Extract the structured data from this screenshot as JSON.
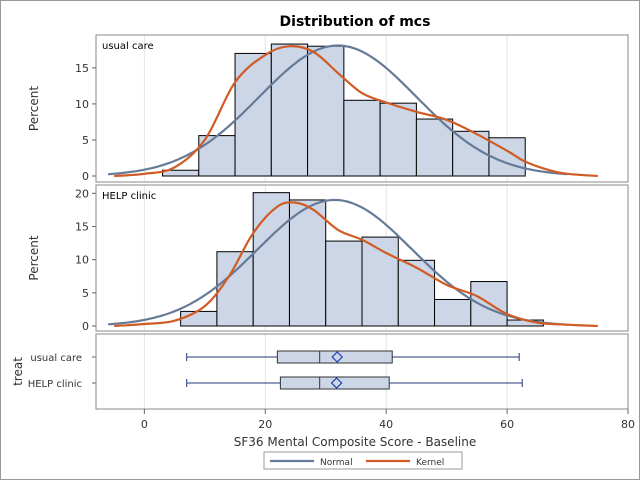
{
  "chart_data": {
    "type": "histogram",
    "title": "Distribution of mcs",
    "xlabel": "SF36 Mental Composite Score - Baseline",
    "xlim": [
      -8,
      80
    ],
    "xticks": [
      0,
      20,
      40,
      60,
      80
    ],
    "bins": [
      3,
      9,
      15,
      21,
      27,
      33,
      39,
      45,
      51,
      57,
      63
    ],
    "panels": [
      {
        "label": "usual care",
        "ylabel": "Percent",
        "ylim": [
          0,
          19
        ],
        "yticks": [
          0,
          5,
          10,
          15
        ],
        "percents": [
          0.8,
          5.6,
          17.0,
          18.3,
          18.0,
          10.5,
          10.1,
          7.9,
          6.2,
          5.3
        ],
        "normal_mean": 32,
        "normal_sd": 13.0,
        "normal_peak": 18.1,
        "kernel": [
          [
            -5,
            0
          ],
          [
            0,
            0.3
          ],
          [
            5,
            1.2
          ],
          [
            10,
            5
          ],
          [
            15,
            13
          ],
          [
            20,
            16.8
          ],
          [
            24,
            18
          ],
          [
            28,
            17.2
          ],
          [
            32,
            14.3
          ],
          [
            36,
            11.5
          ],
          [
            40,
            10.2
          ],
          [
            45,
            8.9
          ],
          [
            50,
            7.8
          ],
          [
            55,
            5.8
          ],
          [
            60,
            3.5
          ],
          [
            63,
            2
          ],
          [
            67,
            0.8
          ],
          [
            70,
            0.3
          ],
          [
            75,
            0
          ]
        ]
      },
      {
        "label": "HELP clinic",
        "ylabel": "Percent",
        "ylim": [
          0,
          20.5
        ],
        "yticks": [
          0,
          5,
          10,
          15,
          20
        ],
        "bins": [
          6,
          12,
          18,
          24,
          30,
          36,
          42,
          48,
          54,
          60,
          66
        ],
        "percents": [
          2.2,
          11.2,
          20.1,
          19.0,
          12.8,
          13.4,
          9.9,
          4.0,
          6.7,
          0.9
        ],
        "normal_mean": 31.5,
        "normal_sd": 12.8,
        "normal_peak": 19.0,
        "kernel": [
          [
            -5,
            0
          ],
          [
            0,
            0.3
          ],
          [
            5,
            0.8
          ],
          [
            10,
            3
          ],
          [
            14,
            7.5
          ],
          [
            18,
            14
          ],
          [
            22,
            18
          ],
          [
            25,
            18.6
          ],
          [
            28,
            17.5
          ],
          [
            32,
            14.5
          ],
          [
            36,
            13
          ],
          [
            40,
            11
          ],
          [
            45,
            8.8
          ],
          [
            50,
            6.2
          ],
          [
            55,
            4.5
          ],
          [
            60,
            1.8
          ],
          [
            65,
            0.5
          ],
          [
            70,
            0.2
          ],
          [
            75,
            0
          ]
        ]
      }
    ],
    "box": {
      "ylabel": "treat",
      "rows": [
        {
          "name": "usual care",
          "min": 7,
          "q1": 22,
          "median": 29,
          "mean": 31.9,
          "q3": 41,
          "max": 62
        },
        {
          "name": "HELP clinic",
          "min": 7,
          "q1": 22.5,
          "median": 29,
          "mean": 31.8,
          "q3": 40.5,
          "max": 62.5
        }
      ]
    },
    "legend": [
      {
        "name": "Normal",
        "color": "#667b98"
      },
      {
        "name": "Kernel",
        "color": "#d05b24"
      }
    ],
    "colors": {
      "bar_fill": "#ccd6e6",
      "bar_stroke": "#000000",
      "box_fill": "#ccd6e6",
      "whisker": "#1f3a7a",
      "grid": "#e4e4e4"
    }
  }
}
